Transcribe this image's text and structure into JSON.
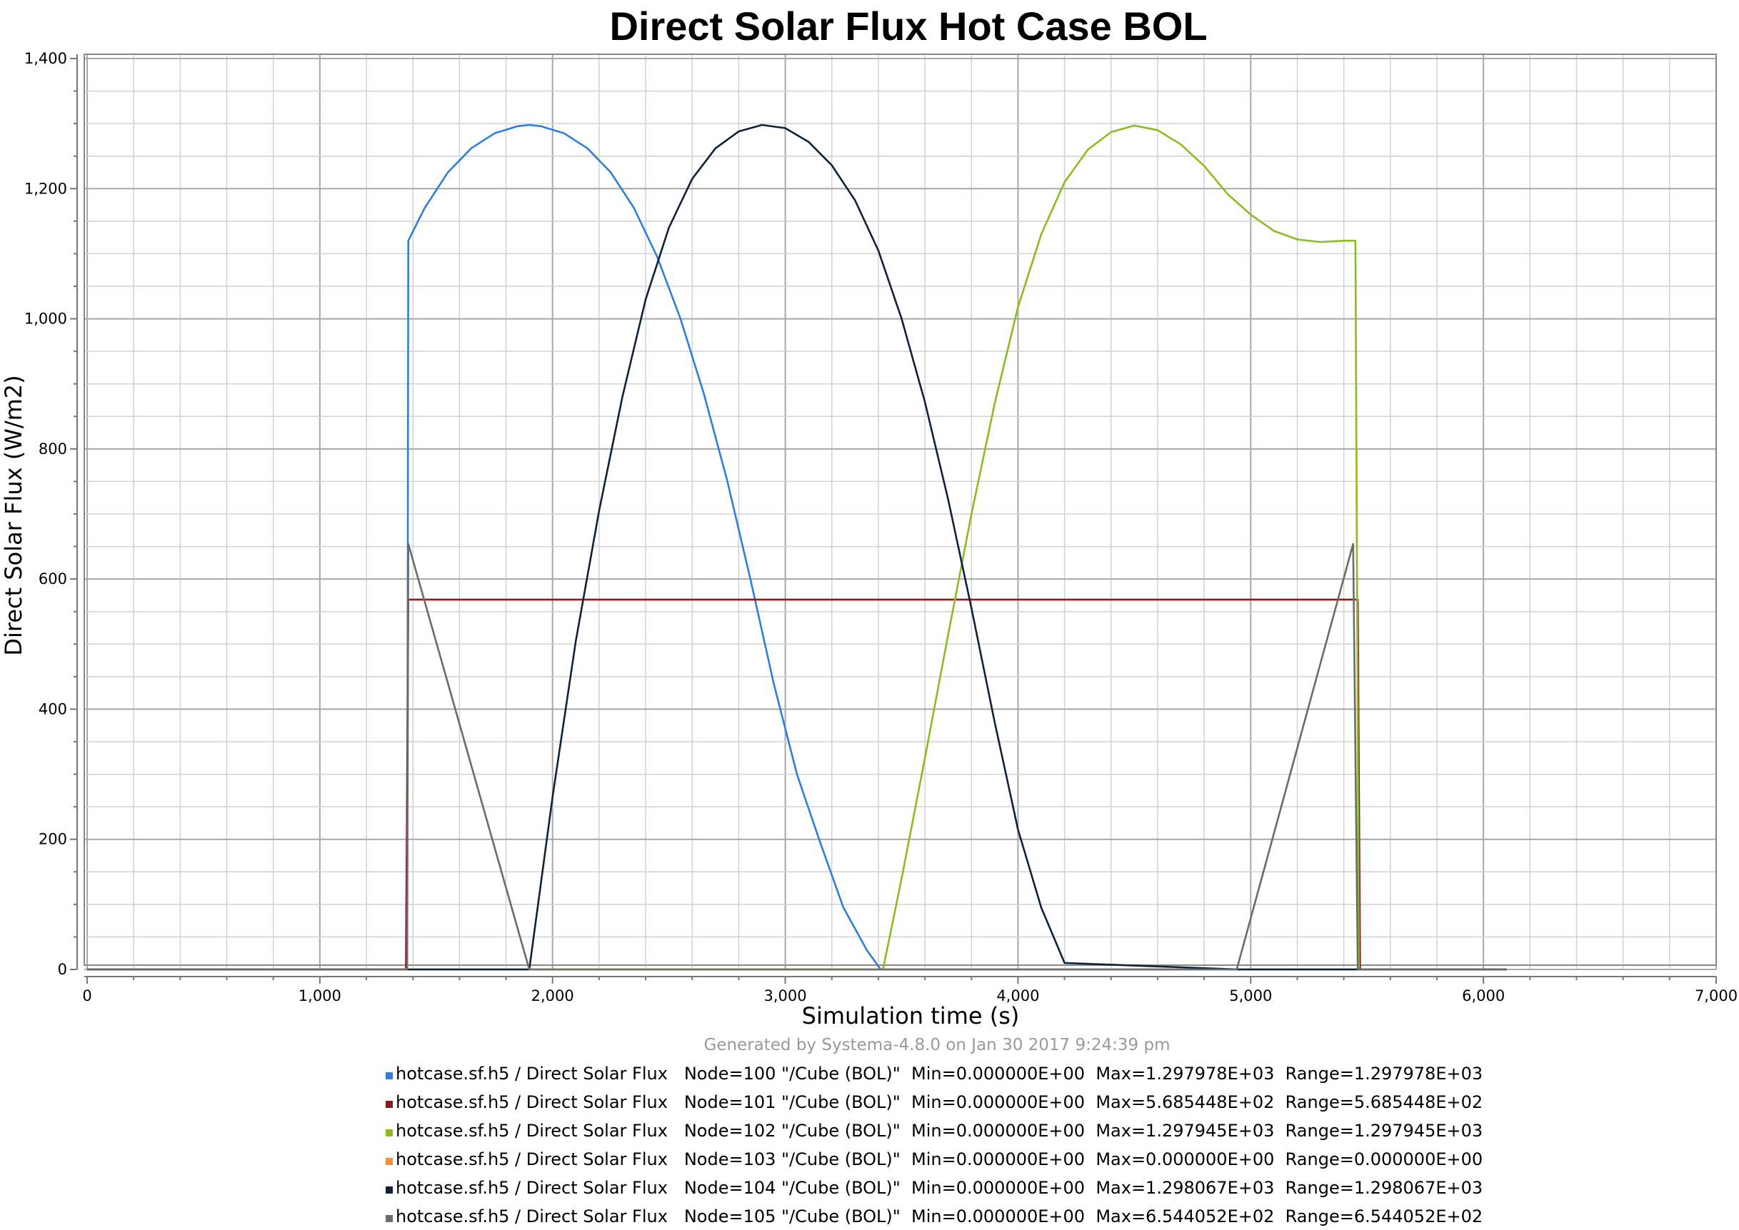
{
  "chart_data": {
    "type": "line",
    "title": "Direct Solar Flux Hot Case BOL",
    "xlabel": "Simulation time (s)",
    "ylabel": "Direct Solar Flux (W/m2)",
    "caption": "Generated by Systema-4.8.0 on Jan 30 2017 9:24:39 pm",
    "xlim": [
      0,
      7000
    ],
    "ylim": [
      0,
      1400
    ],
    "x_ticks": [
      0,
      1000,
      2000,
      3000,
      4000,
      5000,
      6000,
      7000
    ],
    "x_tick_labels": [
      "0",
      "1,000",
      "2,000",
      "3,000",
      "4,000",
      "5,000",
      "6,000",
      "7,000"
    ],
    "y_ticks": [
      0,
      200,
      400,
      600,
      800,
      1000,
      1200,
      1400
    ],
    "y_tick_labels": [
      "0",
      "200",
      "400",
      "600",
      "800",
      "1,000",
      "1,200",
      "1,400"
    ],
    "grid": true,
    "legend_position": "bottom",
    "series": [
      {
        "legend": "hotcase.sf.h5 / Direct Solar Flux   Node=100 \"/Cube (BOL)\"  Min=0.000000E+00  Max=1.297978E+03  Range=1.297978E+03",
        "color": "#2f7ed8",
        "points": [
          [
            0,
            0
          ],
          [
            1375,
            0
          ],
          [
            1380,
            1120
          ],
          [
            1450,
            1170
          ],
          [
            1550,
            1225
          ],
          [
            1650,
            1262
          ],
          [
            1750,
            1285
          ],
          [
            1850,
            1296
          ],
          [
            1900,
            1298
          ],
          [
            1950,
            1296
          ],
          [
            2050,
            1285
          ],
          [
            2150,
            1262
          ],
          [
            2250,
            1225
          ],
          [
            2350,
            1170
          ],
          [
            2450,
            1095
          ],
          [
            2550,
            1000
          ],
          [
            2650,
            885
          ],
          [
            2750,
            752
          ],
          [
            2850,
            600
          ],
          [
            2950,
            440
          ],
          [
            3050,
            300
          ],
          [
            3150,
            195
          ],
          [
            3250,
            95
          ],
          [
            3350,
            30
          ],
          [
            3410,
            0
          ],
          [
            6100,
            0
          ]
        ]
      },
      {
        "legend": "hotcase.sf.h5 / Direct Solar Flux   Node=101 \"/Cube (BOL)\"  Min=0.000000E+00  Max=5.685448E+02  Range=5.685448E+02",
        "color": "#8b1a1a",
        "points": [
          [
            0,
            0
          ],
          [
            1370,
            0
          ],
          [
            1380,
            568.5
          ],
          [
            5460,
            568.5
          ],
          [
            5470,
            0
          ],
          [
            6100,
            0
          ]
        ]
      },
      {
        "legend": "hotcase.sf.h5 / Direct Solar Flux   Node=102 \"/Cube (BOL)\"  Min=0.000000E+00  Max=1.297945E+03  Range=1.297945E+03",
        "color": "#8bbc21",
        "points": [
          [
            0,
            0
          ],
          [
            3420,
            0
          ],
          [
            3500,
            140
          ],
          [
            3600,
            325
          ],
          [
            3700,
            515
          ],
          [
            3800,
            700
          ],
          [
            3900,
            870
          ],
          [
            4000,
            1018
          ],
          [
            4100,
            1130
          ],
          [
            4200,
            1210
          ],
          [
            4300,
            1260
          ],
          [
            4400,
            1287
          ],
          [
            4500,
            1297
          ],
          [
            4600,
            1290
          ],
          [
            4700,
            1268
          ],
          [
            4800,
            1235
          ],
          [
            4900,
            1192
          ],
          [
            5000,
            1160
          ],
          [
            5100,
            1135
          ],
          [
            5200,
            1122
          ],
          [
            5300,
            1118
          ],
          [
            5400,
            1120
          ],
          [
            5450,
            1120
          ],
          [
            5465,
            0
          ],
          [
            6100,
            0
          ]
        ]
      },
      {
        "legend": "hotcase.sf.h5 / Direct Solar Flux   Node=103 \"/Cube (BOL)\"  Min=0.000000E+00  Max=0.000000E+00  Range=0.000000E+00",
        "color": "#f28f43",
        "points": [
          [
            0,
            0
          ],
          [
            6100,
            0
          ]
        ]
      },
      {
        "legend": "hotcase.sf.h5 / Direct Solar Flux   Node=104 \"/Cube (BOL)\"  Min=0.000000E+00  Max=1.298067E+03  Range=1.298067E+03",
        "color": "#0d233a",
        "points": [
          [
            0,
            0
          ],
          [
            1900,
            0
          ],
          [
            2000,
            265
          ],
          [
            2100,
            505
          ],
          [
            2200,
            705
          ],
          [
            2300,
            880
          ],
          [
            2400,
            1030
          ],
          [
            2500,
            1140
          ],
          [
            2600,
            1215
          ],
          [
            2700,
            1262
          ],
          [
            2800,
            1288
          ],
          [
            2900,
            1298
          ],
          [
            3000,
            1293
          ],
          [
            3100,
            1272
          ],
          [
            3200,
            1236
          ],
          [
            3300,
            1182
          ],
          [
            3400,
            1105
          ],
          [
            3500,
            1000
          ],
          [
            3600,
            872
          ],
          [
            3700,
            722
          ],
          [
            3800,
            555
          ],
          [
            3900,
            380
          ],
          [
            4000,
            215
          ],
          [
            4100,
            95
          ],
          [
            4200,
            10
          ],
          [
            4950,
            0
          ],
          [
            6100,
            0
          ]
        ]
      },
      {
        "legend": "hotcase.sf.h5 / Direct Solar Flux   Node=105 \"/Cube (BOL)\"  Min=0.000000E+00  Max=6.544052E+02  Range=6.544052E+02",
        "color": "#6b6b6b",
        "points": [
          [
            0,
            0
          ],
          [
            1375,
            0
          ],
          [
            1380,
            654
          ],
          [
            1900,
            0
          ],
          [
            4940,
            0
          ],
          [
            5440,
            654
          ],
          [
            5460,
            0
          ],
          [
            6100,
            0
          ]
        ]
      }
    ]
  }
}
